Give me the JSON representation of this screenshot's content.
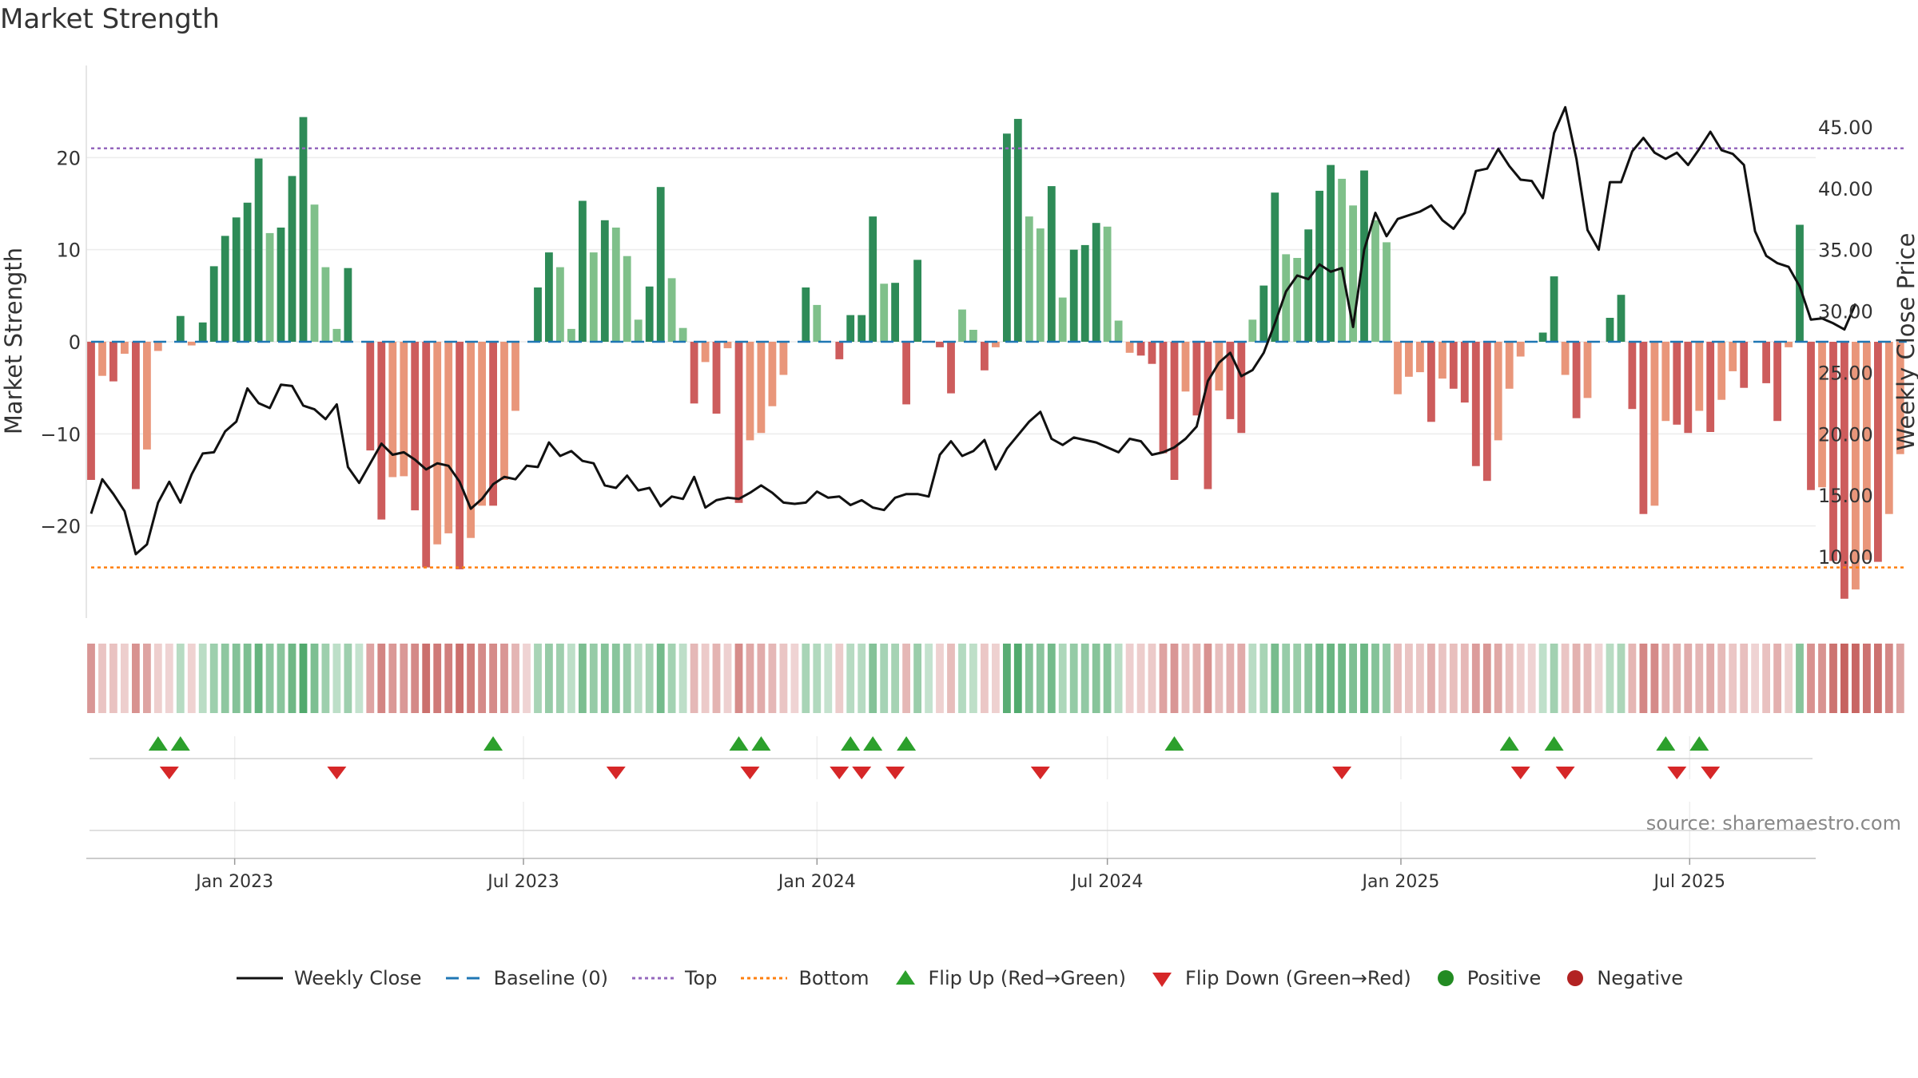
{
  "chart_data": {
    "type": "bar",
    "title": "Market Strength",
    "ylabel": "Market Strength",
    "y2label": "Weekly Close Price",
    "ylim": [
      -30,
      30
    ],
    "y2lim": [
      5,
      50
    ],
    "yticks": [
      -20,
      -10,
      0,
      10,
      20
    ],
    "yticklabels": [
      "−20",
      "−10",
      "0",
      "10",
      "20"
    ],
    "y2ticks": [
      10,
      15,
      20,
      25,
      30,
      35,
      40,
      45
    ],
    "y2ticklabels": [
      "10.00",
      "15.00",
      "20.00",
      "25.00",
      "30.00",
      "35.00",
      "40.00",
      "45.00"
    ],
    "x_start": "2022-10-03",
    "x_interval_days": 7,
    "x_range": [
      "2022-09-30",
      "2025-09-18"
    ],
    "xticks": [
      "2023-01-01",
      "2023-07-01",
      "2024-01-01",
      "2024-07-01",
      "2025-01-01",
      "2025-07-01"
    ],
    "xticklabels": [
      "Jan 2023",
      "Jul 2023",
      "Jan 2024",
      "Jul 2024",
      "Jan 2025",
      "Jul 2025"
    ],
    "top_level": 21,
    "bottom_level": -24.5,
    "source_note": "source: sharemaestro.com",
    "colors": {
      "positive_strong": "#2e8b57",
      "positive_weak": "#7fc08a",
      "negative_strong": "#cd5c5c",
      "negative_weak": "#e9967a",
      "close_line": "#111111",
      "baseline": "#1f77b4",
      "top": "#9467bd",
      "bottom": "#ff7f0e",
      "flip_up": "#2ca02c",
      "flip_down": "#d62728",
      "legend_positive": "#228b22",
      "legend_negative": "#b22222"
    },
    "series": [
      {
        "name": "Market Strength",
        "kind": "bar",
        "values": [
          -15,
          -3.7,
          -4.3,
          -1.3,
          -16,
          -11.7,
          -1,
          0,
          2.8,
          -0.4,
          2.1,
          8.2,
          11.5,
          13.5,
          15.1,
          19.9,
          11.8,
          12.4,
          18,
          24.4,
          14.9,
          8.1,
          1.4,
          8,
          0,
          -11.8,
          -19.3,
          -14.7,
          -14.6,
          -18.3,
          -24.5,
          -22,
          -20.8,
          -24.7,
          -21.3,
          -17.8,
          -17.8,
          -15,
          -7.5,
          0,
          5.9,
          9.7,
          8.1,
          1.4,
          15.3,
          9.7,
          13.2,
          12.4,
          9.3,
          2.4,
          6,
          16.8,
          6.9,
          1.5,
          -6.7,
          -2.2,
          -7.8,
          -0.7,
          -17.5,
          -10.7,
          -9.9,
          -7,
          -3.6,
          0,
          5.9,
          4,
          0,
          -1.9,
          2.9,
          2.9,
          13.6,
          6.3,
          6.4,
          -6.8,
          8.9,
          0,
          -0.6,
          -5.6,
          3.5,
          1.3,
          -3.1,
          -0.6,
          22.6,
          24.2,
          13.6,
          12.3,
          16.9,
          4.8,
          10,
          10.5,
          12.9,
          12.5,
          2.3,
          -1.2,
          -1.5,
          -2.4,
          -12.1,
          -15,
          -5.4,
          -8,
          -16,
          -5.3,
          -8.4,
          -9.9,
          2.4,
          6.1,
          16.2,
          9.5,
          9.1,
          12.2,
          16.4,
          19.2,
          17.7,
          14.8,
          18.6,
          13.2,
          10.8,
          -5.7,
          -3.8,
          -3.3,
          -8.7,
          -4,
          -5.1,
          -6.6,
          -13.5,
          -15.1,
          -10.7,
          -5.1,
          -1.6,
          0,
          1,
          7.1,
          -3.6,
          -8.3,
          -6.1,
          0,
          2.6,
          5.1,
          -7.3,
          -18.7,
          -17.8,
          -8.6,
          -9,
          -9.9,
          -7.5,
          -9.8,
          -6.3,
          -3.2,
          -5,
          0,
          -4.5,
          -8.6,
          -0.6,
          12.7,
          -16.1,
          -15.8,
          -23.8,
          -27.9,
          -26.9,
          -23.7,
          -23.9,
          -18.7,
          -12.2
        ]
      },
      {
        "name": "Weekly Close",
        "kind": "line",
        "values": [
          13.5,
          16.3,
          15.1,
          13.7,
          10.2,
          11,
          14.4,
          16.1,
          14.4,
          16.7,
          18.4,
          18.5,
          20.2,
          21,
          23.7,
          22.5,
          22.1,
          24,
          23.9,
          22.3,
          22,
          21.2,
          22.4,
          17.3,
          16,
          17.6,
          19.2,
          18.3,
          18.5,
          17.9,
          17.1,
          17.6,
          17.4,
          16.1,
          13.9,
          14.7,
          15.9,
          16.5,
          16.3,
          17.4,
          17.3,
          19.3,
          18.2,
          18.6,
          17.8,
          17.6,
          15.8,
          15.6,
          16.6,
          15.4,
          15.6,
          14.1,
          14.9,
          14.7,
          16.5,
          14,
          14.6,
          14.8,
          14.7,
          15.2,
          15.8,
          15.2,
          14.4,
          14.3,
          14.4,
          15.3,
          14.8,
          14.9,
          14.2,
          14.6,
          14,
          13.8,
          14.8,
          15.1,
          15.1,
          14.9,
          18.3,
          19.4,
          18.2,
          18.6,
          19.5,
          17.1,
          18.8,
          19.9,
          21,
          21.8,
          19.6,
          19.1,
          19.7,
          19.5,
          19.3,
          18.9,
          18.5,
          19.6,
          19.4,
          18.3,
          18.5,
          18.9,
          19.6,
          20.6,
          24.3,
          25.8,
          26.6,
          24.7,
          25.2,
          26.6,
          29,
          31.6,
          32.9,
          32.6,
          33.8,
          33.2,
          33.5,
          28.7,
          35,
          38,
          36.1,
          37.5,
          37.8,
          38.1,
          38.6,
          37.4,
          36.7,
          38,
          41.4,
          41.6,
          43.2,
          41.8,
          40.7,
          40.6,
          39.2,
          44.5,
          46.6,
          42.4,
          36.6,
          35,
          40.5,
          40.5,
          43,
          44.1,
          42.9,
          42.4,
          42.9,
          41.9,
          43.2,
          44.6,
          43.1,
          42.8,
          41.9,
          36.5,
          34.5,
          33.9,
          33.6,
          32,
          29.3,
          29.4,
          29,
          28.5,
          30.6
        ]
      },
      {
        "name": "Baseline (0)",
        "kind": "hline",
        "values": [
          0
        ]
      },
      {
        "name": "Top",
        "kind": "hline",
        "values": [
          21
        ]
      },
      {
        "name": "Bottom",
        "kind": "hline",
        "values": [
          -24.5
        ]
      },
      {
        "name": "Flip Up (Red→Green)",
        "kind": "marker",
        "dates": [
          "2022-11-14",
          "2022-11-28",
          "2023-06-12",
          "2023-11-13",
          "2023-11-27",
          "2024-01-22",
          "2024-02-05",
          "2024-02-26",
          "2024-08-12",
          "2025-03-10",
          "2025-04-07",
          "2025-06-16",
          "2025-07-07"
        ]
      },
      {
        "name": "Flip Down (Green→Red)",
        "kind": "marker",
        "dates": [
          "2022-11-21",
          "2023-03-06",
          "2023-08-28",
          "2023-11-20",
          "2024-01-15",
          "2024-01-29",
          "2024-02-19",
          "2024-05-20",
          "2024-11-25",
          "2025-03-17",
          "2025-04-14",
          "2025-06-23",
          "2025-07-14"
        ]
      },
      {
        "name": "Positive",
        "kind": "legend-only"
      },
      {
        "name": "Negative",
        "kind": "legend-only"
      }
    ],
    "legend_position": "bottom"
  }
}
